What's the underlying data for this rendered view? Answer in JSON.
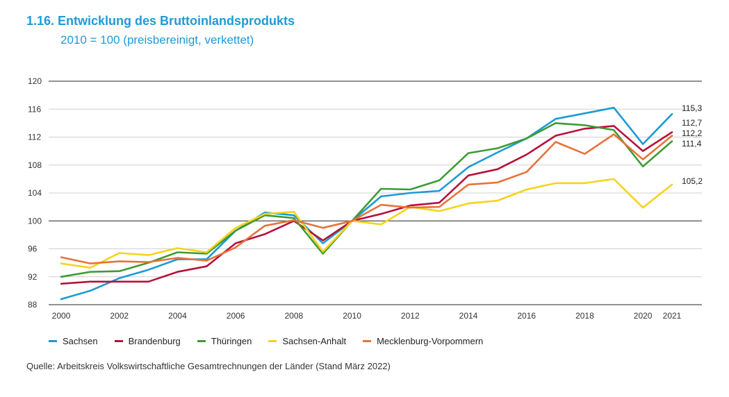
{
  "header": {
    "title": "1.16. Entwicklung des Bruttoinlandsprodukts",
    "subtitle": "2010 = 100 (preisbereinigt, verkettet)"
  },
  "source": "Quelle: Arbeitskreis Volkswirtschaftliche Gesamtrechnungen der Länder (Stand März 2022)",
  "chart_data": {
    "type": "line",
    "x": [
      2000,
      2001,
      2002,
      2003,
      2004,
      2005,
      2006,
      2007,
      2008,
      2009,
      2010,
      2011,
      2012,
      2013,
      2014,
      2015,
      2016,
      2017,
      2018,
      2019,
      2020,
      2021
    ],
    "xticks": [
      2000,
      2002,
      2004,
      2006,
      2008,
      2010,
      2012,
      2014,
      2016,
      2018,
      2020,
      2021
    ],
    "yticks": [
      88,
      92,
      96,
      100,
      104,
      108,
      112,
      116,
      120
    ],
    "ylim": [
      88,
      120
    ],
    "xlim": [
      2000,
      2021
    ],
    "grid": true,
    "legend_position": "bottom",
    "series": [
      {
        "name": "Sachsen",
        "color": "#1b9ad6",
        "values": [
          88.8,
          90.0,
          91.8,
          93.0,
          94.5,
          94.5,
          98.6,
          101.2,
          100.8,
          96.8,
          100.0,
          103.5,
          104.0,
          104.3,
          107.7,
          109.8,
          111.8,
          114.6,
          115.4,
          116.2,
          111.0,
          115.3
        ],
        "end_label": "115,3"
      },
      {
        "name": "Brandenburg",
        "color": "#b5123a",
        "values": [
          91.0,
          91.3,
          91.3,
          91.3,
          92.7,
          93.5,
          96.8,
          98.1,
          100.0,
          97.2,
          100.0,
          101.0,
          102.2,
          102.6,
          106.5,
          107.4,
          109.5,
          112.2,
          113.2,
          113.6,
          110.0,
          112.7
        ],
        "end_label": "112,7"
      },
      {
        "name": "Thüringen",
        "color": "#3e9b35",
        "values": [
          92.0,
          92.7,
          92.8,
          94.0,
          95.5,
          95.3,
          98.6,
          100.8,
          100.4,
          95.3,
          100.0,
          104.6,
          104.5,
          105.8,
          109.7,
          110.4,
          111.8,
          114.0,
          113.7,
          113.0,
          107.8,
          111.4
        ],
        "end_label": "111,4"
      },
      {
        "name": "Sachsen-Anhalt",
        "color": "#f5d31a",
        "values": [
          93.9,
          93.3,
          95.4,
          95.1,
          96.1,
          95.5,
          99.0,
          101.0,
          101.3,
          95.6,
          100.0,
          99.5,
          102.0,
          101.4,
          102.5,
          102.9,
          104.5,
          105.4,
          105.4,
          106.0,
          101.9,
          105.2
        ],
        "end_label": "105,2"
      },
      {
        "name": "Mecklenburg-Vorpommern",
        "color": "#e8723a",
        "values": [
          94.8,
          93.9,
          94.2,
          94.1,
          94.7,
          94.3,
          96.2,
          99.3,
          100.1,
          99.0,
          100.0,
          102.3,
          101.9,
          102.0,
          105.2,
          105.5,
          107.0,
          111.3,
          109.6,
          112.4,
          108.8,
          112.2
        ],
        "end_label": "112,2"
      }
    ]
  }
}
